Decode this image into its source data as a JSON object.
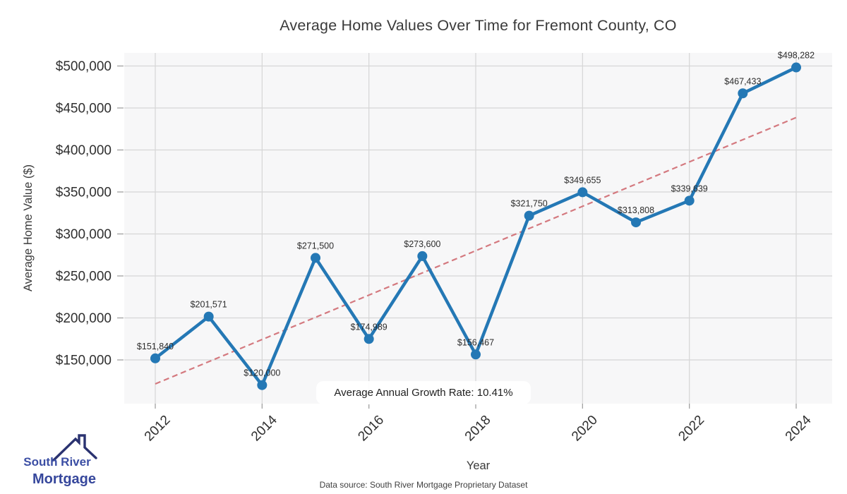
{
  "header": {
    "title": "Average Home Values Over Time for Fremont County, CO"
  },
  "chart_data": {
    "type": "line",
    "title": "Average Home Values Over Time for Fremont County, CO",
    "xlabel": "Year",
    "ylabel": "Average Home Value ($)",
    "x": [
      2012,
      2013,
      2014,
      2015,
      2016,
      2017,
      2018,
      2019,
      2020,
      2021,
      2022,
      2023,
      2024
    ],
    "values": [
      151840,
      201571,
      120000,
      271500,
      174989,
      273600,
      156467,
      321750,
      349655,
      313808,
      339639,
      467433,
      498282
    ],
    "point_labels": [
      "$151,840",
      "$201,571",
      "$120,000",
      "$271,500",
      "$174,989",
      "$273,600",
      "$156,467",
      "$321,750",
      "$349,655",
      "$313,808",
      "$339,639",
      "$467,433",
      "$498,282"
    ],
    "x_ticks": [
      2012,
      2014,
      2016,
      2018,
      2020,
      2022,
      2024
    ],
    "y_ticks": [
      150000,
      200000,
      250000,
      300000,
      350000,
      400000,
      450000,
      500000
    ],
    "y_tick_labels": [
      "$150,000",
      "$200,000",
      "$250,000",
      "$300,000",
      "$350,000",
      "$400,000",
      "$450,000",
      "$500,000"
    ],
    "ylim": [
      98000,
      515500
    ],
    "xlim": [
      2011.42,
      2024.67
    ],
    "grid": true,
    "legend": "none",
    "trendline": {
      "style": "dashed",
      "start": {
        "x": 2012,
        "y": 121439
      },
      "end": {
        "x": 2024,
        "y": 438643
      }
    },
    "annotation": "Average Annual Growth Rate: 10.41%"
  },
  "colors": {
    "line": "#2478b5",
    "marker": "#2478b5",
    "trend": "#d4797f",
    "grid": "#d6d6d6",
    "plot_bg": "#f7f7f8",
    "tick": "#a0a0a0",
    "tick_label": "#2f2f2f",
    "point_label": "#2d2d2d",
    "logo_text": "#3b4ea4",
    "logo_roof": "#2a3270"
  },
  "footer": {
    "data_source": "Data source: South River Mortgage Proprietary Dataset"
  },
  "logo": {
    "line1": "South River",
    "line2": "Mortgage"
  }
}
